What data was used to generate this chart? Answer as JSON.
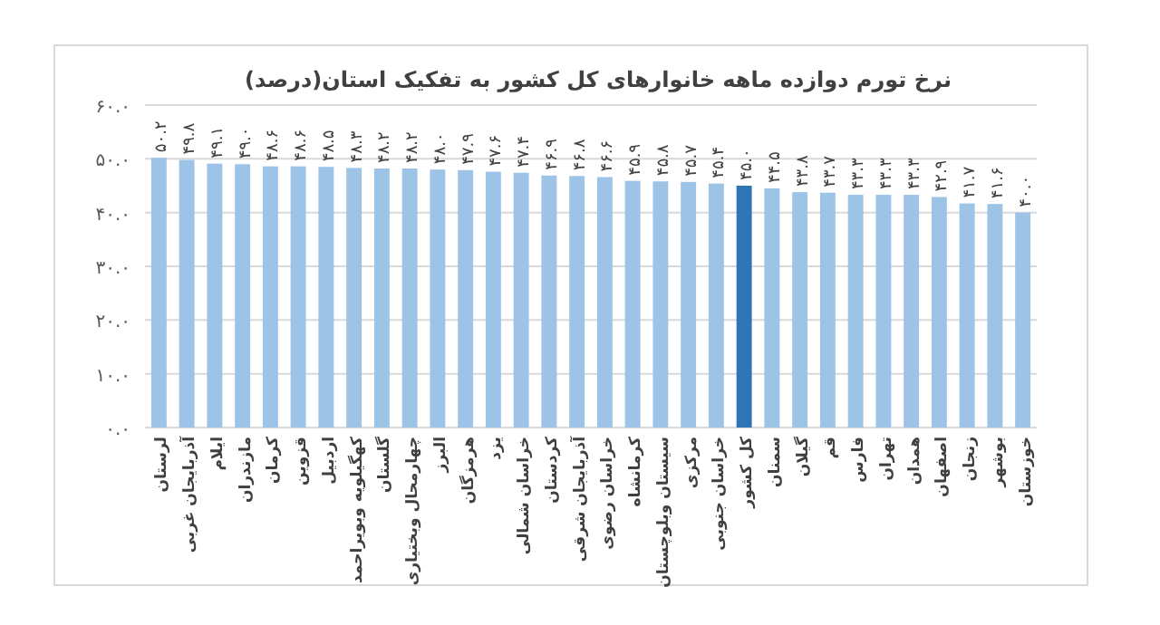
{
  "chart_data": {
    "type": "bar",
    "title": "نرخ تورم دوازده ماهه خانوارهای کل کشور به تفکیک استان(درصد)",
    "categories": [
      "لرستان",
      "آذربایجان غربی",
      "ایلام",
      "مازندران",
      "کرمان",
      "قزوین",
      "اردبیل",
      "کهگیلویه وبویراحمد",
      "گلستان",
      "چهارمحال وبختیاری",
      "البرز",
      "هرمزگان",
      "یزد",
      "خراسان شمالی",
      "کردستان",
      "آذربایجان شرقی",
      "خراسان رضوی",
      "کرمانشاه",
      "سیستان وبلوچستان",
      "مرکزی",
      "خراسان جنوبی",
      "کل کشور",
      "سمنان",
      "گیلان",
      "قم",
      "فارس",
      "تهران",
      "همدان",
      "اصفهان",
      "زنجان",
      "بوشهر",
      "خوزستان"
    ],
    "values": [
      50.2,
      49.8,
      49.1,
      49.0,
      48.6,
      48.6,
      48.5,
      48.3,
      48.2,
      48.2,
      48.0,
      47.9,
      47.6,
      47.4,
      46.9,
      46.8,
      46.6,
      45.9,
      45.8,
      45.7,
      45.4,
      45.0,
      44.5,
      43.8,
      43.7,
      43.3,
      43.3,
      43.3,
      42.9,
      41.7,
      41.6,
      40.0
    ],
    "value_labels": [
      "۵۰.۲",
      "۴۹.۸",
      "۴۹.۱",
      "۴۹.۰",
      "۴۸.۶",
      "۴۸.۶",
      "۴۸.۵",
      "۴۸.۳",
      "۴۸.۲",
      "۴۸.۲",
      "۴۸.۰",
      "۴۷.۹",
      "۴۷.۶",
      "۴۷.۴",
      "۴۶.۹",
      "۴۶.۸",
      "۴۶.۶",
      "۴۵.۹",
      "۴۵.۸",
      "۴۵.۷",
      "۴۵.۴",
      "۴۵.۰",
      "۴۴.۵",
      "۴۳.۸",
      "۴۳.۷",
      "۴۳.۳",
      "۴۳.۳",
      "۴۳.۳",
      "۴۲.۹",
      "۴۱.۷",
      "۴۱.۶",
      "۴۰.۰"
    ],
    "colors": [
      "#9dc3e6",
      "#9dc3e6",
      "#9dc3e6",
      "#9dc3e6",
      "#9dc3e6",
      "#9dc3e6",
      "#9dc3e6",
      "#9dc3e6",
      "#9dc3e6",
      "#9dc3e6",
      "#9dc3e6",
      "#9dc3e6",
      "#9dc3e6",
      "#9dc3e6",
      "#9dc3e6",
      "#9dc3e6",
      "#9dc3e6",
      "#9dc3e6",
      "#9dc3e6",
      "#9dc3e6",
      "#9dc3e6",
      "#2e75b6",
      "#9dc3e6",
      "#9dc3e6",
      "#9dc3e6",
      "#9dc3e6",
      "#9dc3e6",
      "#9dc3e6",
      "#9dc3e6",
      "#9dc3e6",
      "#9dc3e6",
      "#9dc3e6"
    ],
    "ylim": [
      0,
      60
    ],
    "yticks": [
      {
        "value": 0,
        "label": "۰.۰"
      },
      {
        "value": 10,
        "label": "۱۰.۰"
      },
      {
        "value": 20,
        "label": "۲۰.۰"
      },
      {
        "value": 30,
        "label": "۳۰.۰"
      },
      {
        "value": 40,
        "label": "۴۰.۰"
      },
      {
        "value": 50,
        "label": "۵۰.۰"
      },
      {
        "value": 60,
        "label": "۶۰.۰"
      }
    ],
    "grid": "y"
  }
}
